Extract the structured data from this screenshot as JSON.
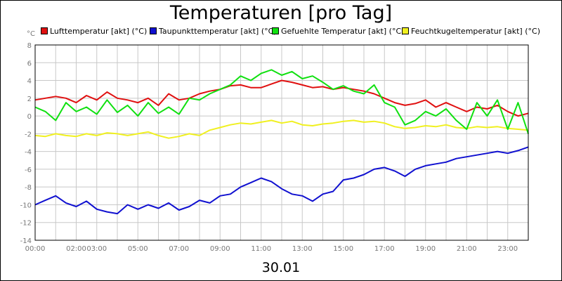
{
  "chart_data": {
    "type": "line",
    "title": "Temperaturen [pro Tag]",
    "xlabel": "30.01",
    "unit": "°C",
    "x_ticks": [
      "00:00",
      "02:00",
      "03:00",
      "05:00",
      "07:00",
      "09:00",
      "11:00",
      "13:00",
      "15:00",
      "17:00",
      "19:00",
      "21:00",
      "23:00"
    ],
    "x_tick_hours": [
      0,
      2,
      3,
      5,
      7,
      9,
      11,
      13,
      15,
      17,
      19,
      21,
      23
    ],
    "y_ticks": [
      8,
      6,
      4,
      2,
      0,
      -2,
      -4,
      -6,
      -8,
      -10,
      -12,
      -14
    ],
    "ylim": [
      -14,
      8
    ],
    "xlim": [
      0,
      24
    ],
    "grid": true,
    "legend_position": "top",
    "series": [
      {
        "name": "Lufttemperatur [akt] (°C)",
        "color": "#e01010",
        "points": [
          [
            0,
            1.8
          ],
          [
            0.5,
            2.0
          ],
          [
            1,
            2.2
          ],
          [
            1.5,
            2.0
          ],
          [
            2,
            1.5
          ],
          [
            2.5,
            2.3
          ],
          [
            3,
            1.8
          ],
          [
            3.5,
            2.7
          ],
          [
            4,
            2.0
          ],
          [
            4.5,
            1.8
          ],
          [
            5,
            1.5
          ],
          [
            5.5,
            2.0
          ],
          [
            6,
            1.2
          ],
          [
            6.5,
            2.5
          ],
          [
            7,
            1.8
          ],
          [
            7.5,
            2.0
          ],
          [
            8,
            2.5
          ],
          [
            8.5,
            2.8
          ],
          [
            9,
            3.0
          ],
          [
            9.5,
            3.4
          ],
          [
            10,
            3.5
          ],
          [
            10.5,
            3.2
          ],
          [
            11,
            3.2
          ],
          [
            11.5,
            3.6
          ],
          [
            12,
            4.0
          ],
          [
            12.5,
            3.8
          ],
          [
            13,
            3.5
          ],
          [
            13.5,
            3.2
          ],
          [
            14,
            3.3
          ],
          [
            14.5,
            3.0
          ],
          [
            15,
            3.2
          ],
          [
            15.5,
            3.0
          ],
          [
            16,
            2.8
          ],
          [
            16.5,
            2.5
          ],
          [
            17,
            2.0
          ],
          [
            17.5,
            1.5
          ],
          [
            18,
            1.2
          ],
          [
            18.5,
            1.4
          ],
          [
            19,
            1.8
          ],
          [
            19.5,
            1.0
          ],
          [
            20,
            1.5
          ],
          [
            20.5,
            1.0
          ],
          [
            21,
            0.5
          ],
          [
            21.5,
            1.0
          ],
          [
            22,
            0.8
          ],
          [
            22.5,
            1.2
          ],
          [
            23,
            0.5
          ],
          [
            23.5,
            0.0
          ],
          [
            24,
            0.3
          ]
        ]
      },
      {
        "name": "Taupunkttemperatur [akt] (°C)",
        "color": "#1010d0",
        "points": [
          [
            0,
            -10.0
          ],
          [
            0.5,
            -9.5
          ],
          [
            1,
            -9.0
          ],
          [
            1.5,
            -9.8
          ],
          [
            2,
            -10.2
          ],
          [
            2.5,
            -9.6
          ],
          [
            3,
            -10.5
          ],
          [
            3.5,
            -10.8
          ],
          [
            4,
            -11.0
          ],
          [
            4.5,
            -10.0
          ],
          [
            5,
            -10.5
          ],
          [
            5.5,
            -10.0
          ],
          [
            6,
            -10.4
          ],
          [
            6.5,
            -9.8
          ],
          [
            7,
            -10.6
          ],
          [
            7.5,
            -10.2
          ],
          [
            8,
            -9.5
          ],
          [
            8.5,
            -9.8
          ],
          [
            9,
            -9.0
          ],
          [
            9.5,
            -8.8
          ],
          [
            10,
            -8.0
          ],
          [
            10.5,
            -7.5
          ],
          [
            11,
            -7.0
          ],
          [
            11.5,
            -7.4
          ],
          [
            12,
            -8.2
          ],
          [
            12.5,
            -8.8
          ],
          [
            13,
            -9.0
          ],
          [
            13.5,
            -9.6
          ],
          [
            14,
            -8.8
          ],
          [
            14.5,
            -8.5
          ],
          [
            15,
            -7.2
          ],
          [
            15.5,
            -7.0
          ],
          [
            16,
            -6.6
          ],
          [
            16.5,
            -6.0
          ],
          [
            17,
            -5.8
          ],
          [
            17.5,
            -6.2
          ],
          [
            18,
            -6.8
          ],
          [
            18.5,
            -6.0
          ],
          [
            19,
            -5.6
          ],
          [
            19.5,
            -5.4
          ],
          [
            20,
            -5.2
          ],
          [
            20.5,
            -4.8
          ],
          [
            21,
            -4.6
          ],
          [
            21.5,
            -4.4
          ],
          [
            22,
            -4.2
          ],
          [
            22.5,
            -4.0
          ],
          [
            23,
            -4.2
          ],
          [
            23.5,
            -3.9
          ],
          [
            24,
            -3.5
          ]
        ]
      },
      {
        "name": "Gefuehlte Temperatur [akt] (°C)",
        "color": "#10e010",
        "points": [
          [
            0,
            1.0
          ],
          [
            0.5,
            0.5
          ],
          [
            1,
            -0.5
          ],
          [
            1.5,
            1.5
          ],
          [
            2,
            0.5
          ],
          [
            2.5,
            1.0
          ],
          [
            3,
            0.2
          ],
          [
            3.5,
            1.8
          ],
          [
            4,
            0.4
          ],
          [
            4.5,
            1.2
          ],
          [
            5,
            0.0
          ],
          [
            5.5,
            1.5
          ],
          [
            6,
            0.3
          ],
          [
            6.5,
            1.0
          ],
          [
            7,
            0.2
          ],
          [
            7.5,
            2.0
          ],
          [
            8,
            1.8
          ],
          [
            8.5,
            2.5
          ],
          [
            9,
            3.0
          ],
          [
            9.5,
            3.5
          ],
          [
            10,
            4.5
          ],
          [
            10.5,
            4.0
          ],
          [
            11,
            4.8
          ],
          [
            11.5,
            5.2
          ],
          [
            12,
            4.6
          ],
          [
            12.5,
            5.0
          ],
          [
            13,
            4.2
          ],
          [
            13.5,
            4.5
          ],
          [
            14,
            3.8
          ],
          [
            14.5,
            3.0
          ],
          [
            15,
            3.4
          ],
          [
            15.5,
            2.8
          ],
          [
            16,
            2.5
          ],
          [
            16.5,
            3.5
          ],
          [
            17,
            1.5
          ],
          [
            17.5,
            1.0
          ],
          [
            18,
            -1.0
          ],
          [
            18.5,
            -0.5
          ],
          [
            19,
            0.5
          ],
          [
            19.5,
            0.0
          ],
          [
            20,
            0.8
          ],
          [
            20.5,
            -0.5
          ],
          [
            21,
            -1.5
          ],
          [
            21.5,
            1.5
          ],
          [
            22,
            0.0
          ],
          [
            22.5,
            1.8
          ],
          [
            23,
            -1.5
          ],
          [
            23.5,
            1.5
          ],
          [
            24,
            -2.0
          ]
        ]
      },
      {
        "name": "Feuchtkugeltemperatur [akt] (°C)",
        "color": "#f0f020",
        "points": [
          [
            0,
            -2.2
          ],
          [
            0.5,
            -2.3
          ],
          [
            1,
            -2.0
          ],
          [
            1.5,
            -2.2
          ],
          [
            2,
            -2.3
          ],
          [
            2.5,
            -2.0
          ],
          [
            3,
            -2.2
          ],
          [
            3.5,
            -1.9
          ],
          [
            4,
            -2.0
          ],
          [
            4.5,
            -2.2
          ],
          [
            5,
            -2.0
          ],
          [
            5.5,
            -1.8
          ],
          [
            6,
            -2.2
          ],
          [
            6.5,
            -2.5
          ],
          [
            7,
            -2.3
          ],
          [
            7.5,
            -2.0
          ],
          [
            8,
            -2.2
          ],
          [
            8.5,
            -1.6
          ],
          [
            9,
            -1.3
          ],
          [
            9.5,
            -1.0
          ],
          [
            10,
            -0.8
          ],
          [
            10.5,
            -0.9
          ],
          [
            11,
            -0.7
          ],
          [
            11.5,
            -0.5
          ],
          [
            12,
            -0.8
          ],
          [
            12.5,
            -0.6
          ],
          [
            13,
            -1.0
          ],
          [
            13.5,
            -1.1
          ],
          [
            14,
            -0.9
          ],
          [
            14.5,
            -0.8
          ],
          [
            15,
            -0.6
          ],
          [
            15.5,
            -0.5
          ],
          [
            16,
            -0.7
          ],
          [
            16.5,
            -0.6
          ],
          [
            17,
            -0.8
          ],
          [
            17.5,
            -1.2
          ],
          [
            18,
            -1.4
          ],
          [
            18.5,
            -1.3
          ],
          [
            19,
            -1.1
          ],
          [
            19.5,
            -1.2
          ],
          [
            20,
            -1.0
          ],
          [
            20.5,
            -1.3
          ],
          [
            21,
            -1.4
          ],
          [
            21.5,
            -1.2
          ],
          [
            22,
            -1.3
          ],
          [
            22.5,
            -1.2
          ],
          [
            23,
            -1.4
          ],
          [
            23.5,
            -1.5
          ],
          [
            24,
            -1.6
          ]
        ]
      }
    ]
  }
}
